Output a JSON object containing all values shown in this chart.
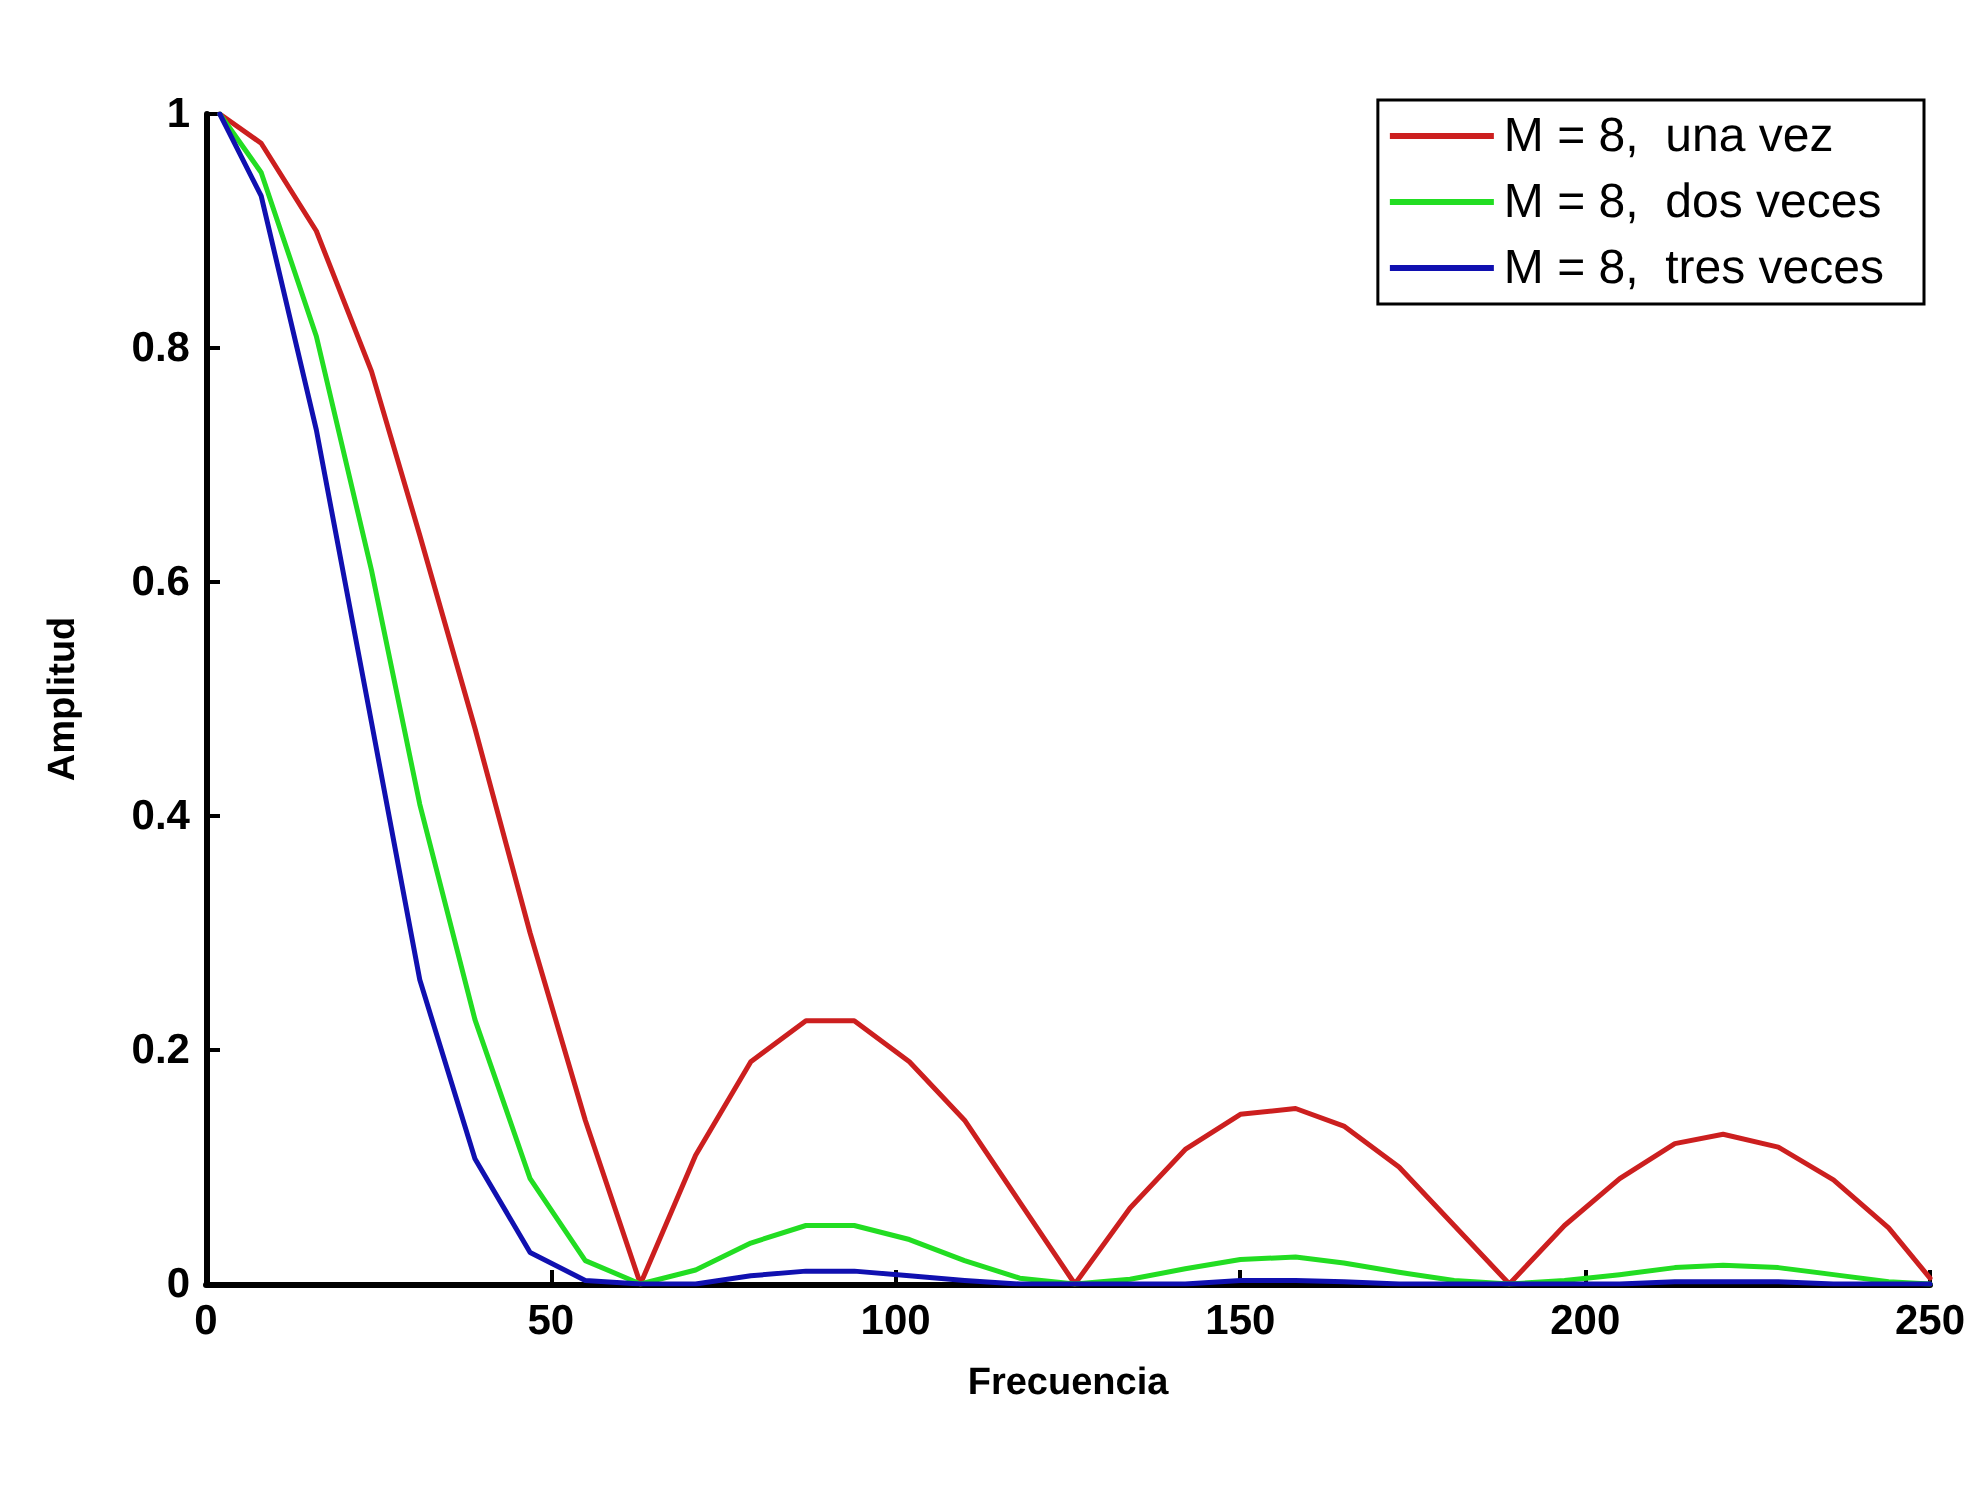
{
  "chart_data": {
    "type": "line",
    "xlabel": "Frecuencia",
    "ylabel": "Amplitud",
    "x": [
      2,
      8,
      16,
      24,
      31,
      39,
      47,
      55,
      63,
      71,
      79,
      87,
      94,
      102,
      110,
      118,
      126,
      134,
      142,
      150,
      158,
      165,
      173,
      181,
      189,
      197,
      205,
      213,
      220,
      228,
      236,
      244,
      250
    ],
    "series": [
      {
        "name": "M = 8,  una vez",
        "color": "#cc1f1f",
        "values": [
          1,
          0.975,
          0.9,
          0.78,
          0.64,
          0.475,
          0.3,
          0.14,
          0,
          0.11,
          0.19,
          0.225,
          0.225,
          0.19,
          0.14,
          0.07,
          0,
          0.065,
          0.115,
          0.145,
          0.15,
          0.135,
          0.1,
          0.05,
          0,
          0.05,
          0.09,
          0.12,
          0.128,
          0.117,
          0.089,
          0.048,
          0.005
        ]
      },
      {
        "name": "M = 8,  dos veces",
        "color": "#22dd22",
        "values": [
          1,
          0.95,
          0.81,
          0.61,
          0.41,
          0.226,
          0.09,
          0.02,
          0,
          0.012,
          0.035,
          0.05,
          0.05,
          0.038,
          0.02,
          0.005,
          0,
          0.004,
          0.013,
          0.021,
          0.023,
          0.018,
          0.01,
          0.003,
          0,
          0.003,
          0.008,
          0.014,
          0.016,
          0.014,
          0.008,
          0.002,
          0
        ]
      },
      {
        "name": "M = 8,  tres veces",
        "color": "#1010b0",
        "values": [
          1,
          0.93,
          0.73,
          0.48,
          0.26,
          0.107,
          0.027,
          0.003,
          0,
          0,
          0.007,
          0.011,
          0.011,
          0.007,
          0.003,
          0,
          0,
          0,
          0,
          0.003,
          0.003,
          0.002,
          0,
          0,
          0,
          0,
          0,
          0.002,
          0.002,
          0.002,
          0,
          0,
          0
        ]
      }
    ],
    "xlim": [
      0,
      250
    ],
    "xticks": [
      0,
      50,
      100,
      150,
      200,
      250
    ],
    "ylim": [
      0,
      1
    ],
    "yticks": [
      0,
      0.2,
      0.4,
      0.6,
      0.8,
      1
    ],
    "grid": false,
    "legend": "top right",
    "marker": "none",
    "line_style": "solid"
  }
}
